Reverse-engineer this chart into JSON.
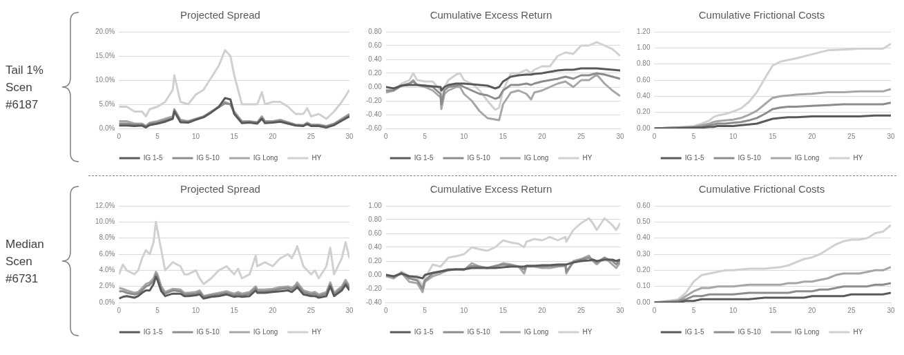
{
  "chart_data": [
    {
      "type": "line",
      "title": "Projected Spread",
      "annotations": [
        "Tail 1% Scen #6187"
      ],
      "grid": "y",
      "legend": "bottom",
      "xlim": [
        0,
        30
      ],
      "xticks": [
        0,
        5,
        10,
        15,
        20,
        25,
        30
      ],
      "ylim": [
        0,
        20
      ],
      "yticks": [
        {
          "value": 0,
          "label": "0.0%"
        },
        {
          "value": 5,
          "label": "5.0%"
        },
        {
          "value": 10,
          "label": "10.0%"
        },
        {
          "value": 15,
          "label": "15.0%"
        },
        {
          "value": 20,
          "label": "20.0%"
        }
      ],
      "x": [
        0,
        1,
        2,
        3,
        3.5,
        4,
        5,
        6,
        7,
        7.2,
        8,
        9,
        10,
        11,
        12,
        13,
        13.8,
        14.5,
        15,
        16,
        17,
        18,
        18.6,
        19,
        20,
        21,
        22,
        23,
        24,
        24.5,
        25,
        26,
        27,
        28,
        29,
        30
      ],
      "series": [
        {
          "name": "IG 1-5",
          "color": "#595959",
          "values": [
            0.6,
            0.6,
            0.5,
            0.6,
            0.2,
            0.7,
            1.0,
            1.4,
            2.0,
            3.5,
            1.3,
            1.2,
            1.8,
            2.3,
            3.3,
            4.5,
            6.3,
            6.0,
            3.0,
            1.1,
            1.2,
            1.0,
            2.0,
            1.1,
            1.2,
            1.4,
            1.0,
            0.6,
            0.5,
            0.9,
            0.5,
            0.5,
            0.2,
            0.7,
            1.6,
            2.5
          ]
        },
        {
          "name": "IG 5-10",
          "color": "#8c8c8c",
          "values": [
            1.0,
            1.0,
            0.8,
            0.8,
            0.4,
            1.0,
            1.2,
            1.7,
            2.2,
            3.8,
            1.6,
            1.4,
            1.9,
            2.4,
            3.4,
            4.4,
            5.2,
            5.0,
            3.2,
            1.3,
            1.4,
            1.2,
            2.2,
            1.3,
            1.4,
            1.6,
            1.2,
            0.7,
            0.6,
            1.0,
            0.7,
            0.7,
            0.4,
            0.9,
            1.8,
            2.8
          ]
        },
        {
          "name": "IG Long",
          "color": "#a6a6a6",
          "values": [
            1.5,
            1.5,
            1.0,
            1.0,
            0.5,
            1.2,
            1.5,
            2.0,
            2.5,
            4.0,
            1.8,
            1.5,
            2.0,
            2.5,
            3.5,
            4.5,
            5.5,
            5.0,
            3.5,
            1.5,
            1.5,
            1.3,
            2.5,
            1.5,
            1.5,
            1.8,
            1.3,
            0.8,
            0.7,
            1.2,
            0.8,
            0.8,
            0.5,
            1.0,
            2.0,
            3.0
          ]
        },
        {
          "name": "HY",
          "color": "#d0d0d0",
          "values": [
            4.5,
            4.5,
            3.5,
            3.5,
            2.5,
            4.0,
            4.5,
            5.5,
            8.0,
            11.0,
            5.5,
            5.0,
            7.0,
            8.0,
            10.5,
            13,
            16.2,
            15,
            11,
            5,
            5,
            5,
            7.5,
            5,
            5.5,
            5.5,
            4.5,
            3,
            3,
            4.2,
            2.5,
            3,
            2,
            3.5,
            5.5,
            8.0
          ]
        }
      ]
    },
    {
      "type": "line",
      "title": "Cumulative Excess Return",
      "grid": "y",
      "legend": "bottom",
      "xlim": [
        0,
        30
      ],
      "xticks": [
        0,
        5,
        10,
        15,
        20,
        25,
        30
      ],
      "ylim": [
        -0.6,
        0.8
      ],
      "yticks": [
        {
          "value": -0.6,
          "label": "-0.60"
        },
        {
          "value": -0.4,
          "label": "-0.40"
        },
        {
          "value": -0.2,
          "label": "-0.20"
        },
        {
          "value": 0,
          "label": "0.00"
        },
        {
          "value": 0.2,
          "label": "0.20"
        },
        {
          "value": 0.4,
          "label": "0.40"
        },
        {
          "value": 0.6,
          "label": "0.60"
        },
        {
          "value": 0.8,
          "label": "0.80"
        }
      ],
      "x": [
        0,
        1,
        2,
        3,
        3.5,
        4,
        5,
        6,
        7,
        7.1,
        7.5,
        8,
        9,
        9.5,
        10,
        11,
        12,
        13,
        14,
        14.5,
        15,
        16,
        17,
        18,
        18.6,
        19,
        20,
        21,
        22,
        23,
        24,
        25,
        26,
        27,
        28,
        29,
        30
      ],
      "series": [
        {
          "name": "IG 1-5",
          "color": "#595959",
          "values": [
            0,
            -0.02,
            0.02,
            0.03,
            0.03,
            0.03,
            0.02,
            0.01,
            0.0,
            -0.05,
            0.0,
            0.03,
            0.05,
            0.05,
            0.05,
            0.04,
            0.03,
            0.02,
            -0.02,
            0.0,
            0.08,
            0.15,
            0.17,
            0.18,
            0.18,
            0.19,
            0.2,
            0.22,
            0.24,
            0.25,
            0.25,
            0.27,
            0.27,
            0.27,
            0.26,
            0.25,
            0.24
          ]
        },
        {
          "name": "IG 5-10",
          "color": "#8c8c8c",
          "values": [
            -0.05,
            -0.05,
            0.02,
            0.05,
            0.08,
            0.03,
            0.02,
            0.0,
            -0.1,
            -0.25,
            -0.05,
            0.0,
            0.02,
            0.03,
            0.0,
            -0.05,
            -0.1,
            -0.12,
            -0.17,
            -0.15,
            -0.05,
            0.03,
            0.03,
            0.05,
            0.03,
            0.05,
            0.08,
            0.1,
            0.12,
            0.15,
            0.12,
            0.17,
            0.17,
            0.2,
            0.18,
            0.15,
            0.12
          ]
        },
        {
          "name": "IG Long",
          "color": "#a6a6a6",
          "values": [
            -0.08,
            -0.05,
            0.02,
            0.05,
            0.1,
            0.03,
            0.0,
            -0.05,
            -0.15,
            -0.32,
            -0.1,
            -0.05,
            0.0,
            0.0,
            -0.1,
            -0.2,
            -0.35,
            -0.45,
            -0.47,
            -0.48,
            -0.25,
            -0.08,
            -0.05,
            -0.1,
            -0.18,
            -0.08,
            -0.05,
            0.0,
            0.05,
            0.08,
            0.0,
            0.1,
            0.1,
            0.18,
            0.05,
            -0.05,
            -0.13
          ]
        },
        {
          "name": "HY",
          "color": "#d0d0d0",
          "values": [
            -0.05,
            -0.05,
            0.05,
            0.1,
            0.2,
            0.1,
            0.08,
            0.08,
            -0.05,
            -0.2,
            0.0,
            0.1,
            0.18,
            0.2,
            0.1,
            0.05,
            -0.05,
            -0.2,
            -0.33,
            -0.3,
            -0.05,
            0.2,
            0.2,
            0.25,
            0.2,
            0.25,
            0.3,
            0.3,
            0.45,
            0.5,
            0.48,
            0.6,
            0.6,
            0.65,
            0.6,
            0.55,
            0.45
          ]
        }
      ]
    },
    {
      "type": "line",
      "title": "Cumulative Frictional Costs",
      "grid": "y",
      "legend": "bottom",
      "xlim": [
        0,
        30
      ],
      "xticks": [
        0,
        5,
        10,
        15,
        20,
        25,
        30
      ],
      "ylim": [
        0,
        1.2
      ],
      "yticks": [
        {
          "value": 0,
          "label": "0.00"
        },
        {
          "value": 0.2,
          "label": "0.20"
        },
        {
          "value": 0.4,
          "label": "0.40"
        },
        {
          "value": 0.6,
          "label": "0.60"
        },
        {
          "value": 0.8,
          "label": "0.80"
        },
        {
          "value": 1,
          "label": "1.00"
        },
        {
          "value": 1.2,
          "label": "1.20"
        }
      ],
      "x": [
        0,
        2.5,
        5,
        6,
        7,
        7.5,
        8,
        9,
        10,
        11,
        12,
        13,
        14,
        15,
        16,
        17,
        18,
        20,
        22,
        24,
        26,
        28,
        29,
        30
      ],
      "series": [
        {
          "name": "IG 1-5",
          "color": "#595959",
          "values": [
            0,
            0,
            0.01,
            0.01,
            0.02,
            0.02,
            0.03,
            0.03,
            0.03,
            0.04,
            0.05,
            0.06,
            0.09,
            0.12,
            0.13,
            0.14,
            0.14,
            0.15,
            0.15,
            0.15,
            0.15,
            0.16,
            0.16,
            0.16
          ]
        },
        {
          "name": "IG 5-10",
          "color": "#8c8c8c",
          "values": [
            0,
            0.01,
            0.01,
            0.02,
            0.04,
            0.05,
            0.06,
            0.06,
            0.07,
            0.08,
            0.1,
            0.13,
            0.18,
            0.24,
            0.26,
            0.27,
            0.27,
            0.28,
            0.29,
            0.3,
            0.3,
            0.3,
            0.3,
            0.32
          ]
        },
        {
          "name": "IG Long",
          "color": "#a6a6a6",
          "values": [
            0,
            0.01,
            0.02,
            0.04,
            0.06,
            0.08,
            0.09,
            0.1,
            0.11,
            0.13,
            0.17,
            0.22,
            0.3,
            0.38,
            0.4,
            0.41,
            0.42,
            0.43,
            0.45,
            0.45,
            0.46,
            0.46,
            0.46,
            0.49
          ]
        },
        {
          "name": "HY",
          "color": "#d0d0d0",
          "values": [
            0,
            0.01,
            0.03,
            0.06,
            0.1,
            0.14,
            0.16,
            0.18,
            0.21,
            0.25,
            0.33,
            0.45,
            0.62,
            0.78,
            0.83,
            0.85,
            0.87,
            0.92,
            0.97,
            0.98,
            0.99,
            0.99,
            0.99,
            1.05
          ]
        }
      ]
    },
    {
      "type": "line",
      "title": "Projected Spread",
      "annotations": [
        "Median Scen #6731"
      ],
      "grid": "y",
      "legend": "bottom",
      "xlim": [
        0,
        30
      ],
      "xticks": [
        0,
        5,
        10,
        15,
        20,
        25,
        30
      ],
      "ylim": [
        0,
        12
      ],
      "yticks": [
        {
          "value": 0,
          "label": "0.0%"
        },
        {
          "value": 2,
          "label": "2.0%"
        },
        {
          "value": 4,
          "label": "4.0%"
        },
        {
          "value": 6,
          "label": "6.0%"
        },
        {
          "value": 8,
          "label": "8.0%"
        },
        {
          "value": 10,
          "label": "10.0%"
        },
        {
          "value": 12,
          "label": "12.0%"
        }
      ],
      "x": [
        0,
        0.5,
        1,
        2,
        2.5,
        3,
        3.5,
        4,
        4.5,
        4.8,
        5,
        5.5,
        6,
        7,
        8,
        8.5,
        9,
        10,
        10.5,
        11,
        12,
        13,
        14,
        15,
        15.5,
        16,
        17,
        17.8,
        18,
        19,
        20,
        21,
        22,
        22.5,
        23,
        23.2,
        24,
        25,
        25.5,
        26,
        27,
        27.5,
        28,
        29,
        29.5,
        30
      ],
      "series": [
        {
          "name": "IG 1-5",
          "color": "#595959",
          "values": [
            0.5,
            0.7,
            0.8,
            0.6,
            0.8,
            1.2,
            1.5,
            1.5,
            2.3,
            3.2,
            2.8,
            1.4,
            0.8,
            1.1,
            1.1,
            0.8,
            0.8,
            0.9,
            1.0,
            0.5,
            0.7,
            0.8,
            1.0,
            0.7,
            0.8,
            0.7,
            0.8,
            1.5,
            1.2,
            1.2,
            1.3,
            1.4,
            1.5,
            1.3,
            1.7,
            1.9,
            1.0,
            0.8,
            0.8,
            0.6,
            0.8,
            2.0,
            0.8,
            1.5,
            2.2,
            1.5
          ]
        },
        {
          "name": "IG 5-10",
          "color": "#8c8c8c",
          "values": [
            1.4,
            1.4,
            1.2,
            1.0,
            1.1,
            1.5,
            2.0,
            2.2,
            2.7,
            3.5,
            3.2,
            1.7,
            1.1,
            1.5,
            1.4,
            1.0,
            1.0,
            1.1,
            1.3,
            0.7,
            0.9,
            1.0,
            1.2,
            0.9,
            1.1,
            0.9,
            1.1,
            1.8,
            1.4,
            1.4,
            1.5,
            1.7,
            1.8,
            1.6,
            2.0,
            2.2,
            1.3,
            1.0,
            1.1,
            0.8,
            1.1,
            2.2,
            1.0,
            1.8,
            2.5,
            1.8
          ]
        },
        {
          "name": "IG Long",
          "color": "#a6a6a6",
          "values": [
            1.8,
            1.7,
            1.5,
            1.2,
            1.3,
            1.8,
            2.3,
            2.5,
            3.0,
            3.8,
            3.5,
            2.0,
            1.3,
            1.7,
            1.6,
            1.2,
            1.2,
            1.3,
            1.5,
            0.8,
            1.0,
            1.2,
            1.4,
            1.1,
            1.3,
            1.1,
            1.3,
            2.0,
            1.6,
            1.6,
            1.7,
            1.9,
            2.0,
            1.8,
            2.2,
            2.5,
            1.5,
            1.2,
            1.3,
            1.0,
            1.3,
            2.5,
            1.2,
            2.0,
            2.8,
            2.0
          ]
        },
        {
          "name": "HY",
          "color": "#d0d0d0",
          "values": [
            3.5,
            4.7,
            4.0,
            3.5,
            4.0,
            5.5,
            6.5,
            6.0,
            7.5,
            10.0,
            9.0,
            6.5,
            4.0,
            5.0,
            4.5,
            3.5,
            3.5,
            4.0,
            3.0,
            2.3,
            3.0,
            4.0,
            4.5,
            3.5,
            4.2,
            3.0,
            3.5,
            5.8,
            4.5,
            5.0,
            4.5,
            5.5,
            6.0,
            5.5,
            6.5,
            7.0,
            4.5,
            3.5,
            4.0,
            3.0,
            4.5,
            6.8,
            3.5,
            5.5,
            7.5,
            5.5
          ]
        }
      ]
    },
    {
      "type": "line",
      "title": "Cumulative Excess Return",
      "grid": "y",
      "legend": "bottom",
      "xlim": [
        0,
        30
      ],
      "xticks": [
        0,
        5,
        10,
        15,
        20,
        25,
        30
      ],
      "ylim": [
        -0.4,
        1.0
      ],
      "yticks": [
        {
          "value": -0.4,
          "label": "-0.40"
        },
        {
          "value": -0.2,
          "label": "-0.20"
        },
        {
          "value": 0,
          "label": "0.00"
        },
        {
          "value": 0.2,
          "label": "0.20"
        },
        {
          "value": 0.4,
          "label": "0.40"
        },
        {
          "value": 0.6,
          "label": "0.60"
        },
        {
          "value": 0.8,
          "label": "0.80"
        },
        {
          "value": 1,
          "label": "1.00"
        }
      ],
      "x": [
        0,
        1,
        2,
        3,
        4,
        4.7,
        5,
        6,
        7,
        8,
        9,
        10,
        11,
        12,
        13,
        14,
        15,
        16,
        17,
        17.7,
        18,
        19,
        20,
        21,
        22,
        23,
        23.1,
        24,
        25,
        26,
        26.5,
        27,
        28,
        29,
        29.5,
        30
      ],
      "series": [
        {
          "name": "IG 1-5",
          "color": "#595959",
          "values": [
            0,
            -0.02,
            0.02,
            -0.02,
            -0.03,
            -0.05,
            0.0,
            0.03,
            0.05,
            0.07,
            0.08,
            0.08,
            0.1,
            0.1,
            0.1,
            0.1,
            0.11,
            0.12,
            0.12,
            0.12,
            0.13,
            0.13,
            0.14,
            0.14,
            0.15,
            0.15,
            0.15,
            0.18,
            0.2,
            0.21,
            0.22,
            0.2,
            0.22,
            0.22,
            0.2,
            0.22
          ]
        },
        {
          "name": "IG 5-10",
          "color": "#8c8c8c",
          "values": [
            0,
            -0.03,
            0.03,
            -0.05,
            -0.08,
            -0.2,
            -0.08,
            0.02,
            0.05,
            0.08,
            0.08,
            0.08,
            0.13,
            0.12,
            0.1,
            0.13,
            0.15,
            0.14,
            0.12,
            0.08,
            0.13,
            0.13,
            0.12,
            0.13,
            0.13,
            0.14,
            0.05,
            0.18,
            0.22,
            0.25,
            0.22,
            0.18,
            0.25,
            0.2,
            0.15,
            0.22
          ]
        },
        {
          "name": "IG Long",
          "color": "#a6a6a6",
          "values": [
            -0.02,
            -0.05,
            0.03,
            -0.1,
            -0.12,
            -0.25,
            -0.1,
            -0.02,
            0.02,
            0.07,
            0.08,
            0.07,
            0.17,
            0.12,
            0.1,
            0.12,
            0.17,
            0.15,
            0.12,
            0.02,
            0.12,
            0.12,
            0.1,
            0.1,
            0.12,
            0.13,
            0.02,
            0.2,
            0.23,
            0.28,
            0.2,
            0.15,
            0.25,
            0.15,
            0.1,
            0.18
          ]
        },
        {
          "name": "HY",
          "color": "#d0d0d0",
          "values": [
            0,
            -0.05,
            0.05,
            -0.02,
            -0.05,
            -0.15,
            -0.05,
            0.15,
            0.12,
            0.25,
            0.27,
            0.3,
            0.4,
            0.37,
            0.35,
            0.4,
            0.5,
            0.47,
            0.45,
            0.4,
            0.48,
            0.52,
            0.5,
            0.55,
            0.5,
            0.55,
            0.48,
            0.65,
            0.75,
            0.82,
            0.75,
            0.65,
            0.82,
            0.72,
            0.65,
            0.75
          ]
        }
      ]
    },
    {
      "type": "line",
      "title": "Cumulative Frictional Costs",
      "grid": "y",
      "legend": "bottom",
      "xlim": [
        0,
        30
      ],
      "xticks": [
        0,
        5,
        10,
        15,
        20,
        25,
        30
      ],
      "ylim": [
        0,
        0.6
      ],
      "yticks": [
        {
          "value": 0,
          "label": "0.00"
        },
        {
          "value": 0.1,
          "label": "0.10"
        },
        {
          "value": 0.2,
          "label": "0.20"
        },
        {
          "value": 0.3,
          "label": "0.30"
        },
        {
          "value": 0.4,
          "label": "0.40"
        },
        {
          "value": 0.5,
          "label": "0.50"
        },
        {
          "value": 0.6,
          "label": "0.60"
        }
      ],
      "x": [
        0,
        2,
        3,
        4,
        5,
        6,
        7,
        8,
        9,
        10,
        12,
        14,
        16,
        17,
        18,
        19,
        20,
        21,
        22,
        23,
        24,
        25,
        26,
        27,
        28,
        29,
        30
      ],
      "series": [
        {
          "name": "IG 1-5",
          "color": "#595959",
          "values": [
            0,
            0,
            0,
            0.01,
            0.01,
            0.02,
            0.02,
            0.02,
            0.02,
            0.02,
            0.02,
            0.03,
            0.03,
            0.03,
            0.03,
            0.03,
            0.04,
            0.04,
            0.04,
            0.04,
            0.04,
            0.05,
            0.05,
            0.05,
            0.05,
            0.05,
            0.06
          ]
        },
        {
          "name": "IG 5-10",
          "color": "#8c8c8c",
          "values": [
            0,
            0,
            0.01,
            0.02,
            0.04,
            0.04,
            0.05,
            0.05,
            0.05,
            0.05,
            0.06,
            0.06,
            0.06,
            0.06,
            0.07,
            0.07,
            0.07,
            0.08,
            0.08,
            0.09,
            0.1,
            0.1,
            0.1,
            0.1,
            0.11,
            0.11,
            0.12
          ]
        },
        {
          "name": "IG Long",
          "color": "#a6a6a6",
          "values": [
            0,
            0.01,
            0.01,
            0.04,
            0.07,
            0.09,
            0.09,
            0.1,
            0.1,
            0.1,
            0.11,
            0.11,
            0.11,
            0.12,
            0.12,
            0.13,
            0.13,
            0.14,
            0.15,
            0.17,
            0.18,
            0.18,
            0.18,
            0.19,
            0.2,
            0.2,
            0.22
          ]
        },
        {
          "name": "HY",
          "color": "#d0d0d0",
          "values": [
            0,
            0.01,
            0.02,
            0.06,
            0.13,
            0.17,
            0.18,
            0.19,
            0.2,
            0.2,
            0.21,
            0.21,
            0.22,
            0.23,
            0.25,
            0.27,
            0.28,
            0.3,
            0.33,
            0.36,
            0.38,
            0.39,
            0.39,
            0.4,
            0.43,
            0.44,
            0.48
          ]
        }
      ]
    }
  ]
}
